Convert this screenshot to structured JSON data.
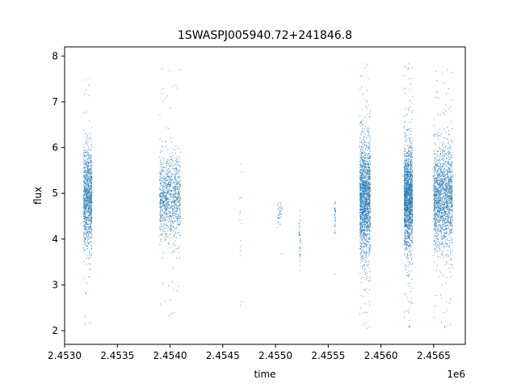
{
  "chart_data": {
    "type": "scatter",
    "title": "1SWASPJ005940.72+241846.8",
    "xlabel": "time",
    "ylabel": "flux",
    "x_offset_label": "1e6",
    "xlim": [
      2.453,
      2.4568
    ],
    "ylim": [
      1.7,
      8.2
    ],
    "x_ticks": [
      2.453,
      2.4535,
      2.454,
      2.4545,
      2.455,
      2.4555,
      2.456,
      2.4565
    ],
    "x_tick_labels": [
      "2.4530",
      "2.4535",
      "2.4540",
      "2.4545",
      "2.4550",
      "2.4555",
      "2.4560",
      "2.4565"
    ],
    "y_ticks": [
      2,
      3,
      4,
      5,
      6,
      7,
      8
    ],
    "y_tick_labels": [
      "2",
      "3",
      "4",
      "5",
      "6",
      "7",
      "8"
    ],
    "grid": false,
    "marker_color": "#1f77b4",
    "series": [
      {
        "clusters": [
          {
            "x_range": [
              2.45318,
              2.45326
            ],
            "y_center": 4.9,
            "y_spread": 0.55,
            "y_range": [
              1.95,
              7.65
            ],
            "density": "high"
          },
          {
            "x_range": [
              2.4539,
              2.4541
            ],
            "y_center": 4.9,
            "y_spread": 0.45,
            "y_range": [
              2.3,
              7.85
            ],
            "density": "high"
          },
          {
            "x_range": [
              2.45466,
              2.45468
            ],
            "y_center": 4.3,
            "y_spread": 0.8,
            "y_range": [
              2.55,
              5.7
            ],
            "density": "very-low"
          },
          {
            "x_range": [
              2.45502,
              2.45506
            ],
            "y_center": 4.5,
            "y_spread": 0.15,
            "y_range": [
              3.3,
              4.8
            ],
            "density": "low"
          },
          {
            "x_range": [
              2.45522,
              2.45524
            ],
            "y_center": 4.0,
            "y_spread": 0.3,
            "y_range": [
              3.2,
              4.7
            ],
            "density": "low"
          },
          {
            "x_range": [
              2.45556,
              2.45557
            ],
            "y_center": 4.5,
            "y_spread": 0.2,
            "y_range": [
              2.85,
              5.1
            ],
            "density": "low"
          },
          {
            "x_range": [
              2.4558,
              2.4559
            ],
            "y_center": 4.9,
            "y_spread": 0.65,
            "y_range": [
              1.95,
              7.9
            ],
            "density": "very-high"
          },
          {
            "x_range": [
              2.45622,
              2.4563
            ],
            "y_center": 4.9,
            "y_spread": 0.55,
            "y_range": [
              2.0,
              7.9
            ],
            "density": "very-high"
          },
          {
            "x_range": [
              2.4565,
              2.45668
            ],
            "y_center": 4.9,
            "y_spread": 0.55,
            "y_range": [
              2.0,
              7.8
            ],
            "density": "very-high"
          }
        ]
      }
    ]
  }
}
